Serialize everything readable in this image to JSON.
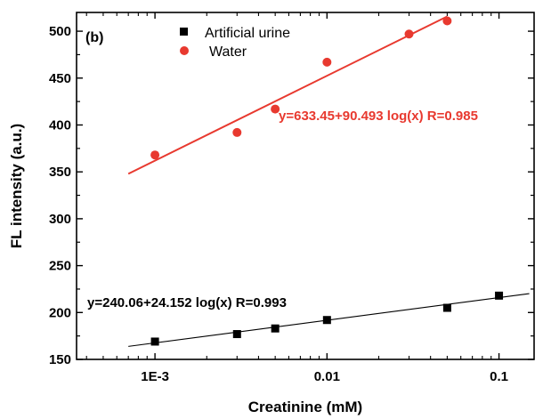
{
  "chart_data": {
    "type": "scatter",
    "panel_label": "(b)",
    "xlabel": "Creatinine (mM)",
    "ylabel": "FL intensity (a.u.)",
    "xscale": "log",
    "xlim": [
      0.00035,
      0.16
    ],
    "ylim": [
      150,
      520
    ],
    "xticks": [
      {
        "value": 0.001,
        "label": "1E-3"
      },
      {
        "value": 0.01,
        "label": "0.01"
      },
      {
        "value": 0.1,
        "label": "0.1"
      }
    ],
    "yticks": [
      {
        "value": 150,
        "label": "150"
      },
      {
        "value": 200,
        "label": "200"
      },
      {
        "value": 250,
        "label": "250"
      },
      {
        "value": 300,
        "label": "300"
      },
      {
        "value": 350,
        "label": "350"
      },
      {
        "value": 400,
        "label": "400"
      },
      {
        "value": 450,
        "label": "450"
      },
      {
        "value": 500,
        "label": "500"
      }
    ],
    "legend_position": "top-center",
    "series": [
      {
        "name": "Artificial urine",
        "marker": "square",
        "color": "#000000",
        "x": [
          0.001,
          0.003,
          0.005,
          0.01,
          0.05,
          0.1
        ],
        "y": [
          169,
          177,
          183,
          192,
          205,
          218
        ],
        "fit": {
          "intercept": 240.06,
          "slope": 24.152,
          "x_range": [
            0.0007,
            0.15
          ]
        },
        "equation": "y=240.06+24.152 log(x)  R=0.993"
      },
      {
        "name": "Water",
        "marker": "circle",
        "color": "#e8392f",
        "x": [
          0.001,
          0.003,
          0.005,
          0.01,
          0.03,
          0.05
        ],
        "y": [
          368,
          392,
          417,
          467,
          497,
          511
        ],
        "fit": {
          "intercept": 633.45,
          "slope": 90.493,
          "x_range": [
            0.0007,
            0.05
          ]
        },
        "equation": "y=633.45+90.493 log(x) R=0.985"
      }
    ]
  }
}
